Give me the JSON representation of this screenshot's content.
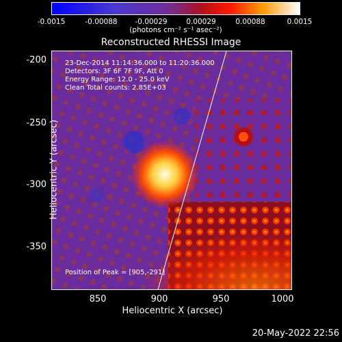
{
  "colorbar": {
    "ticks": [
      "-0.0015",
      "-0.00088",
      "-0.00029",
      "0.00029",
      "0.00088",
      "0.0015"
    ],
    "units": "(photons cm⁻² s⁻¹ asec⁻²)"
  },
  "plot": {
    "title": "Reconstructed RHESSI Image",
    "xlabel": "Heliocentric X (arcsec)",
    "ylabel": "Heliocentric Y (arcsec)",
    "xticks": [
      "850",
      "900",
      "950",
      "1000"
    ],
    "yticks": [
      "-200",
      "-250",
      "-300",
      "-350"
    ],
    "info": [
      "23-Dec-2014 11:14:36.000 to 11:20:36.000",
      "Detectors: 3F 6F 7F 9F, Att 0",
      "Energy Range: 12.0 - 25.0 keV",
      "Clean    Total counts: 2.85E+03"
    ],
    "peak_label": "Position of Peak = [905,-291]"
  },
  "footer": {
    "date": "20-May-2022 22:56"
  },
  "colors": {
    "negative": "#2020ff",
    "mid": "#6a2c9c",
    "positive": "#ff2000",
    "peak": "#ffffc0"
  }
}
